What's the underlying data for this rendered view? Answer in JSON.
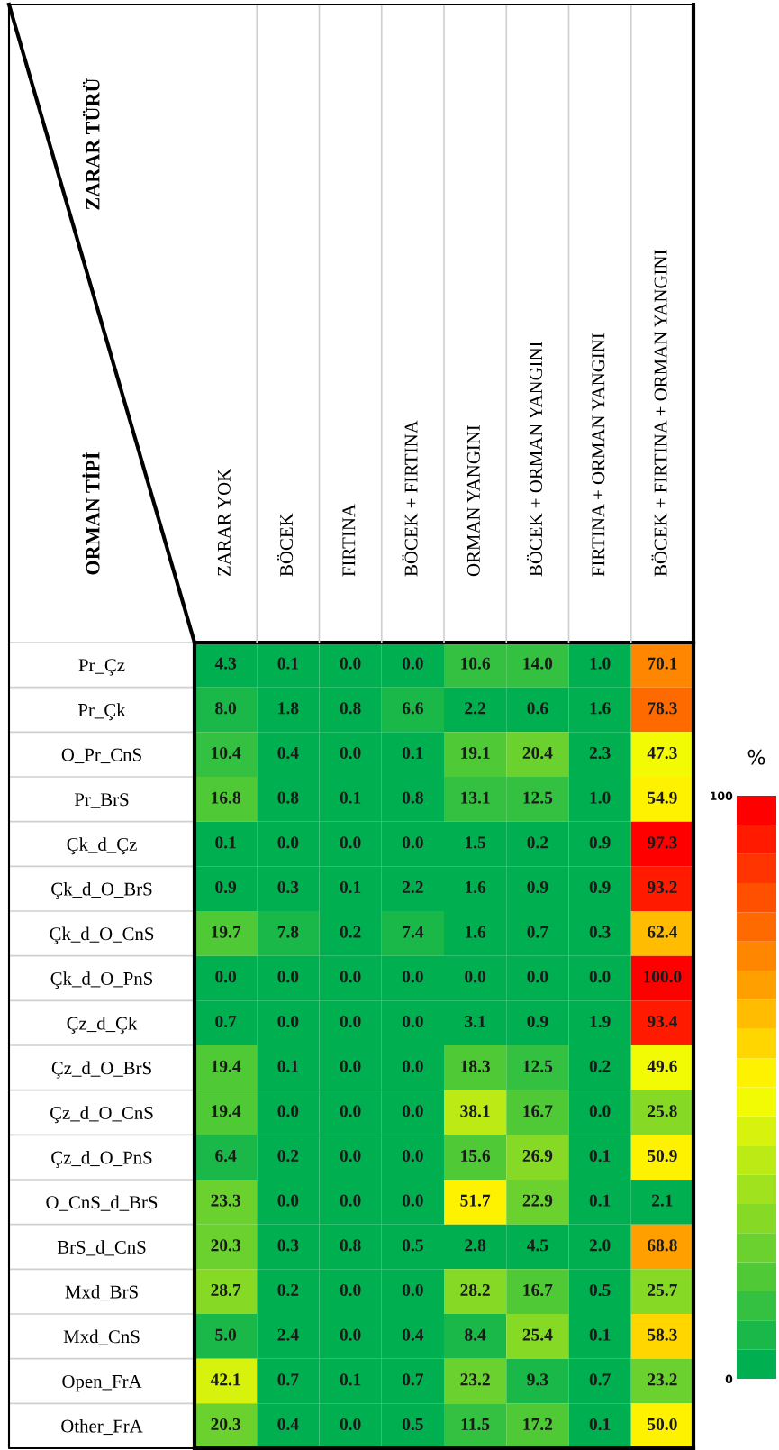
{
  "chart_data": {
    "type": "heatmap",
    "annotations": [
      "ZARAR TÜRÜ"
    ],
    "ylabel": "ORMAN TİPİ",
    "clabel": "%",
    "categories": [
      "ZARAR YOK",
      "BÖCEK",
      "FIRTINA",
      "BÖCEK + FIRTINA",
      "ORMAN YANGINI",
      "BÖCEK + ORMAN YANGINI",
      "FIRTINA + ORMAN YANGINI",
      "BÖCEK + FIRTINA + ORMAN YANGINI"
    ],
    "y_categories": [
      "Pr_Çz",
      "Pr_Çk",
      "O_Pr_CnS",
      "Pr_BrS",
      "Çk_d_Çz",
      "Çk_d_O_BrS",
      "Çk_d_O_CnS",
      "Çk_d_O_PnS",
      "Çz_d_Çk",
      "Çz_d_O_BrS",
      "Çz_d_O_CnS",
      "Çz_d_O_PnS",
      "O_CnS_d_BrS",
      "BrS_d_CnS",
      "Mxd_BrS",
      "Mxd_CnS",
      "Open_FrA",
      "Other_FrA"
    ],
    "cells": [
      [
        4.3,
        0.1,
        0.0,
        0.0,
        10.6,
        14.0,
        1.0,
        70.1
      ],
      [
        8.0,
        1.8,
        0.8,
        6.6,
        2.2,
        0.6,
        1.6,
        78.3
      ],
      [
        10.4,
        0.4,
        0.0,
        0.1,
        19.1,
        20.4,
        2.3,
        47.3
      ],
      [
        16.8,
        0.8,
        0.1,
        0.8,
        13.1,
        12.5,
        1.0,
        54.9
      ],
      [
        0.1,
        0.0,
        0.0,
        0.0,
        1.5,
        0.2,
        0.9,
        97.3
      ],
      [
        0.9,
        0.3,
        0.1,
        2.2,
        1.6,
        0.9,
        0.9,
        93.2
      ],
      [
        19.7,
        7.8,
        0.2,
        7.4,
        1.6,
        0.7,
        0.3,
        62.4
      ],
      [
        0.0,
        0.0,
        0.0,
        0.0,
        0.0,
        0.0,
        0.0,
        100.0
      ],
      [
        0.7,
        0.0,
        0.0,
        0.0,
        3.1,
        0.9,
        1.9,
        93.4
      ],
      [
        19.4,
        0.1,
        0.0,
        0.0,
        18.3,
        12.5,
        0.2,
        49.6
      ],
      [
        19.4,
        0.0,
        0.0,
        0.0,
        38.1,
        16.7,
        0.0,
        25.8
      ],
      [
        6.4,
        0.2,
        0.0,
        0.0,
        15.6,
        26.9,
        0.1,
        50.9
      ],
      [
        23.3,
        0.0,
        0.0,
        0.0,
        51.7,
        22.9,
        0.1,
        2.1
      ],
      [
        20.3,
        0.3,
        0.8,
        0.5,
        2.8,
        4.5,
        2.0,
        68.8
      ],
      [
        28.7,
        0.2,
        0.0,
        0.0,
        28.2,
        16.7,
        0.5,
        25.7
      ],
      [
        5.0,
        2.4,
        0.0,
        0.4,
        8.4,
        25.4,
        0.1,
        58.3
      ],
      [
        42.1,
        0.7,
        0.1,
        0.7,
        23.2,
        9.3,
        0.7,
        23.2
      ],
      [
        20.3,
        0.4,
        0.0,
        0.5,
        11.5,
        17.2,
        0.1,
        50.0
      ]
    ],
    "cell_labels": [
      [
        "4.3",
        "0.1",
        "0.0",
        "0.0",
        "10.6",
        "14.0",
        "1.0",
        "70.1"
      ],
      [
        "8.0",
        "1.8",
        "0.8",
        "6.6",
        "2.2",
        "0.6",
        "1.6",
        "78.3"
      ],
      [
        "10.4",
        "0.4",
        "0.0",
        "0.1",
        "19.1",
        "20.4",
        "2.3",
        "47.3"
      ],
      [
        "16.8",
        "0.8",
        "0.1",
        "0.8",
        "13.1",
        "12.5",
        "1.0",
        "54.9"
      ],
      [
        "0.1",
        "0.0",
        "0.0",
        "0.0",
        "1.5",
        "0.2",
        "0.9",
        "97.3"
      ],
      [
        "0.9",
        "0.3",
        "0.1",
        "2.2",
        "1.6",
        "0.9",
        "0.9",
        "93.2"
      ],
      [
        "19.7",
        "7.8",
        "0.2",
        "7.4",
        "1.6",
        "0.7",
        "0.3",
        "62.4"
      ],
      [
        "0.0",
        "0.0",
        "0.0",
        "0.0",
        "0.0",
        "0.0",
        "0.0",
        "100.0"
      ],
      [
        "0.7",
        "0.0",
        "0.0",
        "0.0",
        "3.1",
        "0.9",
        "1.9",
        "93.4"
      ],
      [
        "19.4",
        "0.1",
        "0.0",
        "0.0",
        "18.3",
        "12.5",
        "0.2",
        "49.6"
      ],
      [
        "19.4",
        "0.0",
        "0.0",
        "0.0",
        "38.1",
        "16.7",
        "0.0",
        "25.8"
      ],
      [
        "6.4",
        "0.2",
        "0.0",
        "0.0",
        "15.6",
        "26.9",
        "0.1",
        "50.9"
      ],
      [
        "23.3",
        "0.0",
        "0.0",
        "0.0",
        "51.7",
        "22.9",
        "0.1",
        "2.1"
      ],
      [
        "20.3",
        "0.3",
        "0.8",
        "0.5",
        "2.8",
        "4.5",
        "2.0",
        "68.8"
      ],
      [
        "28.7",
        "0.2",
        "0.0",
        "0.0",
        "28.2",
        "16.7",
        "0.5",
        "25.7"
      ],
      [
        "5.0",
        "2.4",
        "0.0",
        "0.4",
        "8.4",
        "25.4",
        "0.1",
        "58.3"
      ],
      [
        "42.1",
        "0.7",
        "0.1",
        "0.7",
        "23.2",
        "9.3",
        "0.7",
        "23.2"
      ],
      [
        "20.3",
        "0.4",
        "0.0",
        "0.5",
        "11.5",
        "17.2",
        "0.1",
        "50.0"
      ]
    ],
    "clim": [
      0,
      100
    ],
    "cticks": [
      0,
      100
    ]
  }
}
